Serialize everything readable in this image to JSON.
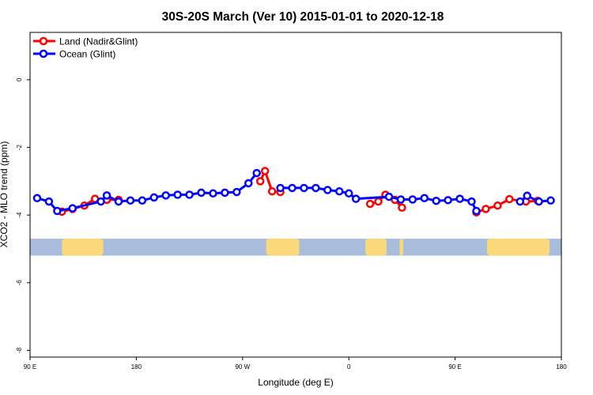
{
  "chart_data": {
    "type": "line",
    "title": "30S-20S March (Ver 10)   2015-01-01 to 2020-12-18",
    "xlabel": "Longitude (deg E)",
    "ylabel": "XCO2 - MLO trend (ppm)",
    "xlim": [
      90,
      540
    ],
    "ylim": [
      -8.2,
      1.4
    ],
    "x_ticks": [
      {
        "value": 90,
        "label": "90 E"
      },
      {
        "value": 180,
        "label": "180"
      },
      {
        "value": 270,
        "label": "90 W"
      },
      {
        "value": 360,
        "label": "0"
      },
      {
        "value": 450,
        "label": "90 E"
      },
      {
        "value": 540,
        "label": "180"
      }
    ],
    "y_ticks": [
      {
        "value": 0,
        "label": "0"
      },
      {
        "value": -2,
        "label": "-2"
      },
      {
        "value": -4,
        "label": "-4"
      },
      {
        "value": -6,
        "label": "-6"
      },
      {
        "value": -8,
        "label": "-8"
      }
    ],
    "legend": {
      "position": "top-left"
    },
    "colors": {
      "land": "#ff0000",
      "ocean": "#0000ff",
      "ocean_band": "#a8bcdc",
      "land_band": "#fad97a"
    },
    "series": [
      {
        "name": "Land (Nadir&Glint)",
        "color": "#ff0000",
        "segments": [
          [
            [
              117,
              -3.9
            ],
            [
              126,
              -3.82
            ],
            [
              136,
              -3.72
            ],
            [
              145,
              -3.52
            ],
            [
              155,
              -3.55
            ],
            [
              165,
              -3.55
            ]
          ],
          [
            [
              285,
              -3.0
            ],
            [
              289,
              -2.7
            ],
            [
              295,
              -3.3
            ],
            [
              302,
              -3.32
            ]
          ],
          [
            [
              378,
              -3.67
            ],
            [
              385,
              -3.6
            ],
            [
              391,
              -3.4
            ],
            [
              399,
              -3.55
            ],
            [
              405,
              -3.78
            ]
          ],
          [
            [
              468,
              -3.92
            ],
            [
              476,
              -3.82
            ],
            [
              486,
              -3.72
            ],
            [
              496,
              -3.53
            ],
            [
              510,
              -3.6
            ],
            [
              520,
              -3.58
            ]
          ]
        ]
      },
      {
        "name": "Ocean (Glint)",
        "color": "#0000ff",
        "segments": [
          [
            [
              96,
              -3.5
            ],
            [
              106,
              -3.6
            ],
            [
              113,
              -3.88
            ],
            [
              126,
              -3.8
            ],
            [
              150,
              -3.6
            ],
            [
              155,
              -3.42
            ],
            [
              165,
              -3.6
            ],
            [
              175,
              -3.57
            ],
            [
              185,
              -3.57
            ],
            [
              195,
              -3.48
            ],
            [
              205,
              -3.42
            ],
            [
              215,
              -3.4
            ],
            [
              225,
              -3.4
            ],
            [
              235,
              -3.34
            ],
            [
              245,
              -3.36
            ],
            [
              255,
              -3.34
            ],
            [
              265,
              -3.32
            ],
            [
              275,
              -3.06
            ],
            [
              282,
              -2.76
            ]
          ],
          [
            [
              302,
              -3.2
            ],
            [
              312,
              -3.2
            ],
            [
              322,
              -3.2
            ],
            [
              332,
              -3.2
            ],
            [
              342,
              -3.26
            ],
            [
              352,
              -3.3
            ],
            [
              360,
              -3.36
            ],
            [
              366,
              -3.52
            ],
            [
              394,
              -3.46
            ],
            [
              404,
              -3.54
            ],
            [
              414,
              -3.54
            ],
            [
              424,
              -3.5
            ],
            [
              434,
              -3.58
            ],
            [
              444,
              -3.56
            ],
            [
              454,
              -3.52
            ],
            [
              464,
              -3.6
            ],
            [
              468,
              -3.88
            ]
          ],
          [
            [
              505,
              -3.6
            ],
            [
              511,
              -3.43
            ],
            [
              521,
              -3.6
            ],
            [
              531,
              -3.57
            ]
          ]
        ]
      }
    ],
    "land_mask_band": {
      "y_range": [
        -5.2,
        -4.7
      ],
      "land_spans": [
        [
          117,
          152
        ],
        [
          290,
          318
        ],
        [
          374,
          392
        ],
        [
          403,
          406
        ],
        [
          477,
          530
        ]
      ]
    }
  }
}
